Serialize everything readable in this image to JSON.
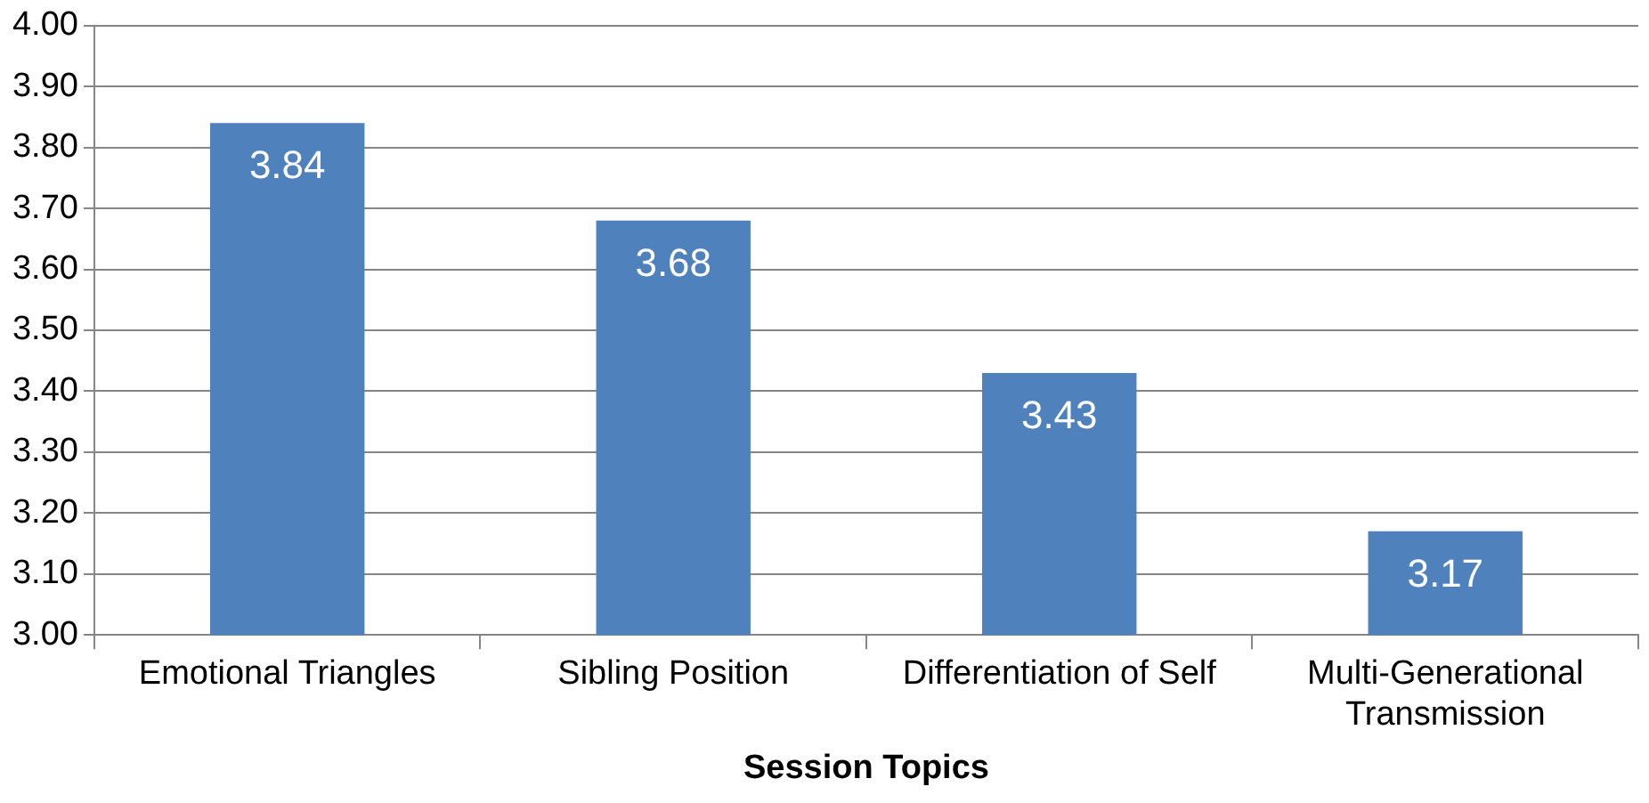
{
  "chart_data": {
    "type": "bar",
    "xlabel": "Session Topics",
    "categories": [
      "Emotional Triangles",
      "Sibling Position",
      "Differentiation of Self",
      "Multi-Generational Transmission"
    ],
    "values": [
      3.84,
      3.68,
      3.43,
      3.17
    ],
    "color": "#4f81bd",
    "data_labels": true,
    "ylim": [
      3,
      4
    ],
    "yticks": [
      {
        "value": 3,
        "label": "3.00"
      },
      {
        "value": 3.1,
        "label": "3.10"
      },
      {
        "value": 3.2,
        "label": "3.20"
      },
      {
        "value": 3.3,
        "label": "3.30"
      },
      {
        "value": 3.4,
        "label": "3.40"
      },
      {
        "value": 3.5,
        "label": "3.50"
      },
      {
        "value": 3.6,
        "label": "3.60"
      },
      {
        "value": 3.7,
        "label": "3.70"
      },
      {
        "value": 3.8,
        "label": "3.80"
      },
      {
        "value": 3.9,
        "label": "3.90"
      },
      {
        "value": 4,
        "label": "4.00"
      }
    ],
    "grid": "y",
    "legend": false
  }
}
